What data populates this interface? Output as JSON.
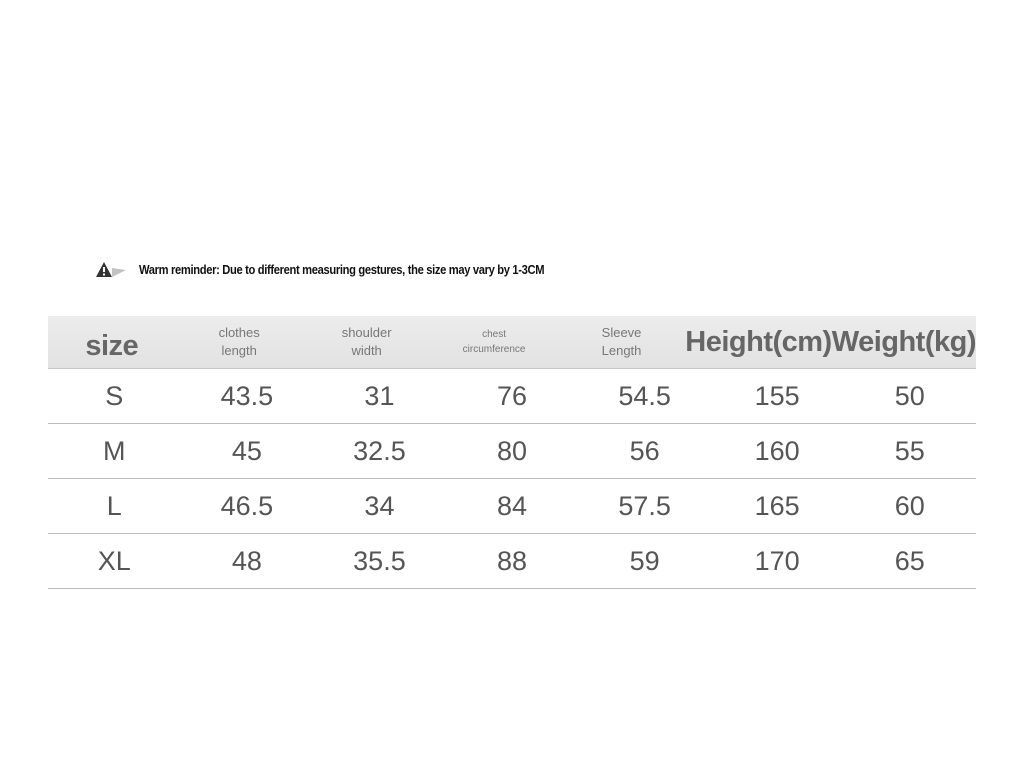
{
  "reminder": "Warm reminder: Due to different measuring gestures, the size may vary by 1-3CM",
  "table": {
    "header": [
      "size",
      "clothes length",
      "shoulder width",
      "chest circumference",
      "Sleeve Length",
      "Height(cm)",
      "Weight(kg)"
    ],
    "rows": [
      [
        "S",
        43.5,
        31,
        76,
        54.5,
        155,
        50
      ],
      [
        "M",
        45,
        32.5,
        80,
        56,
        160,
        55
      ],
      [
        "L",
        46.5,
        34,
        84,
        57.5,
        165,
        60
      ],
      [
        "XL",
        48,
        35.5,
        88,
        59,
        170,
        65
      ]
    ]
  }
}
